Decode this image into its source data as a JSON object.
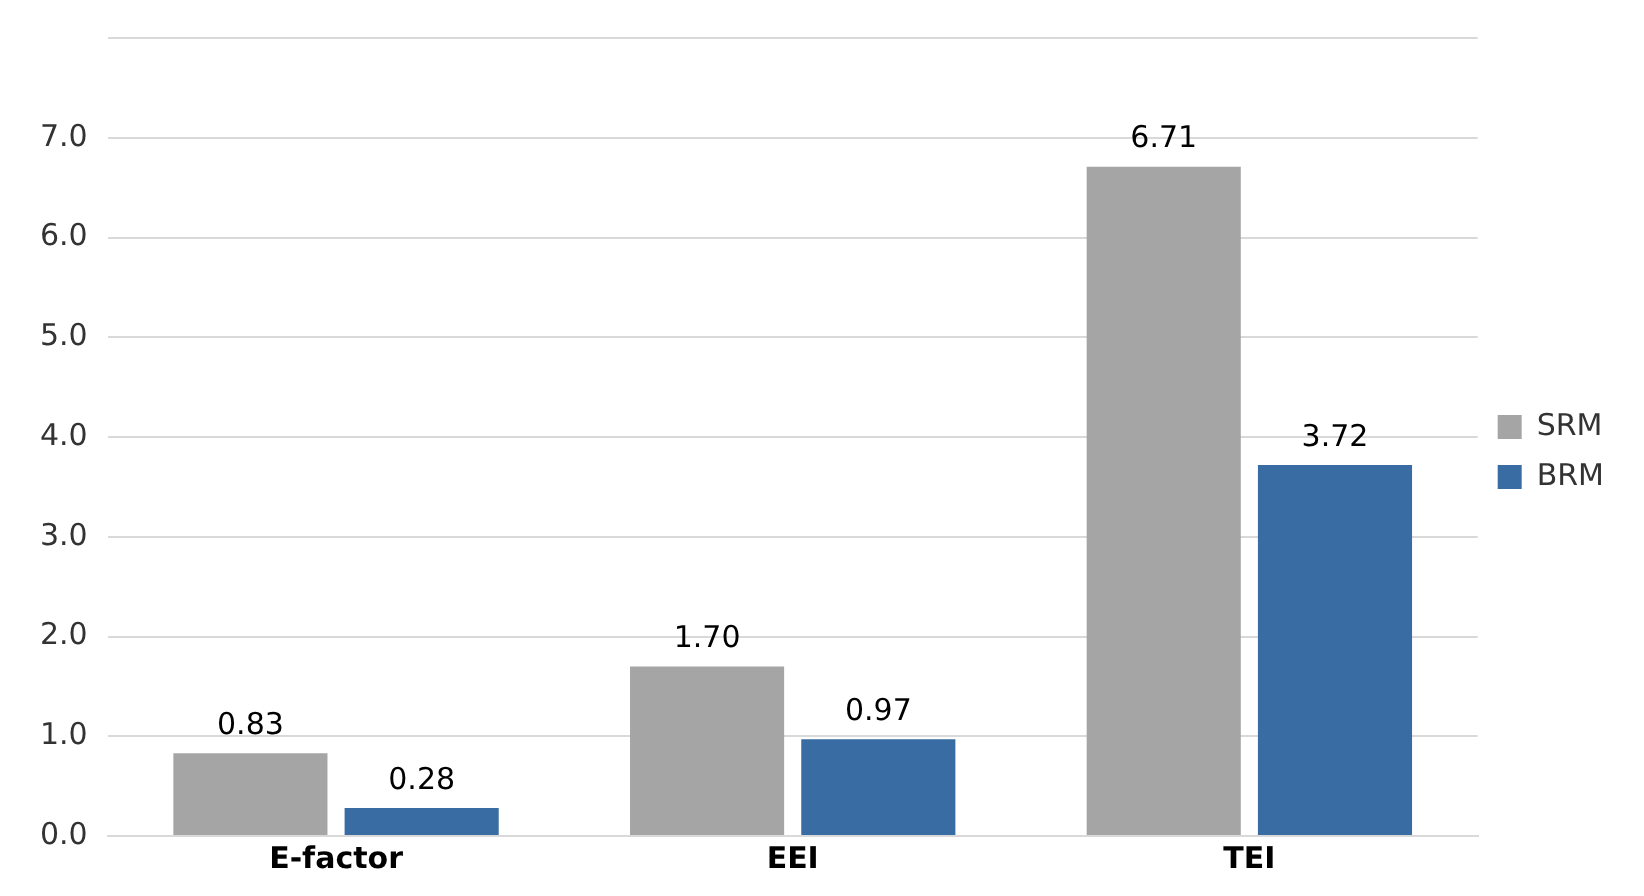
{
  "chart_data": {
    "type": "bar",
    "categories": [
      "E-factor",
      "EEI",
      "TEI"
    ],
    "series": [
      {
        "name": "SRM",
        "color": "#a5a5a5",
        "values": [
          0.83,
          1.7,
          6.71
        ],
        "value_labels": [
          "0.83",
          "1.70",
          "6.71"
        ]
      },
      {
        "name": "BRM",
        "color": "#386ca3",
        "values": [
          0.28,
          0.97,
          3.72
        ],
        "value_labels": [
          "0.28",
          "0.97",
          "3.72"
        ]
      }
    ],
    "ylim": [
      0,
      8
    ],
    "yticks": [
      {
        "value": 0,
        "label": "0.0"
      },
      {
        "value": 1,
        "label": "1.0"
      },
      {
        "value": 2,
        "label": "2.0"
      },
      {
        "value": 3,
        "label": "3.0"
      },
      {
        "value": 4,
        "label": "4.0"
      },
      {
        "value": 5,
        "label": "5.0"
      },
      {
        "value": 6,
        "label": "6.0"
      },
      {
        "value": 7,
        "label": "7.0"
      },
      {
        "value": 8,
        "label": null
      }
    ],
    "grid": "y",
    "legend": "right"
  }
}
